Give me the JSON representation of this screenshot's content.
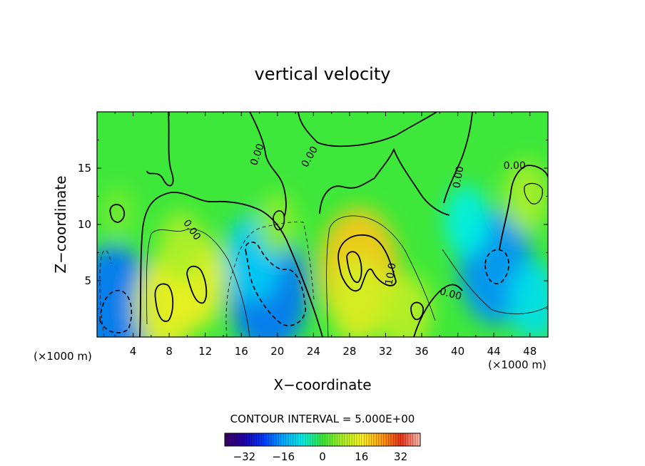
{
  "chart_data": {
    "type": "heatmap",
    "title": "vertical velocity",
    "xlabel": "X−coordinate",
    "ylabel": "Z−coordinate",
    "x_unit_left": "(×1000 m)",
    "x_unit_right": "(×1000 m)",
    "xlim": [
      0,
      50
    ],
    "ylim": [
      0,
      20
    ],
    "x_ticks": [
      4,
      8,
      12,
      16,
      20,
      24,
      28,
      32,
      36,
      40,
      44,
      48
    ],
    "x_tick_labels": [
      "4",
      "8",
      "12",
      "16",
      "20",
      "24",
      "28",
      "32",
      "36",
      "40",
      "44",
      "48"
    ],
    "y_ticks": [
      5,
      10,
      15
    ],
    "y_tick_labels": [
      "5",
      "10",
      "15"
    ],
    "contour_interval_text": "CONTOUR INTERVAL = 5.000E+00",
    "contour_labels": [
      {
        "text": "0.00",
        "x": 10.5,
        "y": 9.5,
        "angle": 55
      },
      {
        "text": "0.00",
        "x": 17.8,
        "y": 16.2,
        "angle": -70
      },
      {
        "text": "0.00",
        "x": 23.6,
        "y": 16.0,
        "angle": -60
      },
      {
        "text": "10.0",
        "x": 32.6,
        "y": 5.6,
        "angle": -80
      },
      {
        "text": "0.00",
        "x": 39.2,
        "y": 3.8,
        "angle": 15
      },
      {
        "text": "0.00",
        "x": 40.1,
        "y": 14.2,
        "angle": -80
      },
      {
        "text": "0.00",
        "x": 46.3,
        "y": 15.2,
        "angle": 0
      }
    ],
    "features": [
      {
        "x": 1.8,
        "y": 2.7,
        "value": -20
      },
      {
        "x": 9.0,
        "y": 4.5,
        "value": 12
      },
      {
        "x": 7.6,
        "y": 2.8,
        "value": 14
      },
      {
        "x": 10.8,
        "y": 5.0,
        "value": 14
      },
      {
        "x": 9.3,
        "y": 8.0,
        "value": 8
      },
      {
        "x": 19.0,
        "y": 4.0,
        "value": -20
      },
      {
        "x": 17.3,
        "y": 7.0,
        "value": -12
      },
      {
        "x": 29.0,
        "y": 6.0,
        "value": 20
      },
      {
        "x": 29.0,
        "y": 3.2,
        "value": 12
      },
      {
        "x": 34.2,
        "y": 2.2,
        "value": 10
      },
      {
        "x": 44.2,
        "y": 6.2,
        "value": -18
      },
      {
        "x": 48.5,
        "y": 3.2,
        "value": -10
      },
      {
        "x": 47.6,
        "y": 12.5,
        "value": 8
      },
      {
        "x": 41.0,
        "y": 10.3,
        "value": -8
      },
      {
        "x": 20.0,
        "y": 10.0,
        "value": 6
      },
      {
        "x": 2.3,
        "y": 11.0,
        "value": 4
      }
    ],
    "colorbar": {
      "ticks": [
        -32,
        -16,
        0,
        16,
        32
      ],
      "tick_labels": [
        "−32",
        "−16",
        "0",
        "16",
        "32"
      ],
      "range": [
        -40,
        40
      ]
    }
  }
}
